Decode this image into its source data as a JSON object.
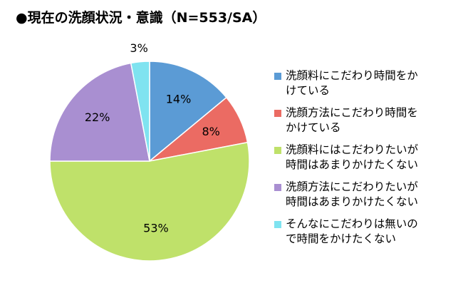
{
  "chart_data": {
    "type": "pie",
    "title": "●現在の洗顔状況・意識（N=553/SA）",
    "categories": [
      "洗顔料にこだわり時間をか\nけている",
      "洗顔方法にこだわり時間を\nかけている",
      "洗顔料にはこだわりたいが\n時間はあまりかけたくない",
      "洗顔方法にこだわりたいが\n時間はあまりかけたくない",
      "そんなにこだわりは無いの\nで時間をかけたくない"
    ],
    "values": [
      14,
      8,
      53,
      22,
      3
    ],
    "labels": [
      "14%",
      "8%",
      "53%",
      "22%",
      "3%"
    ],
    "colors": [
      "#5b9bd5",
      "#eb6b63",
      "#bfe16a",
      "#a98fd1",
      "#7fe3f0"
    ],
    "legend_position": "right"
  }
}
